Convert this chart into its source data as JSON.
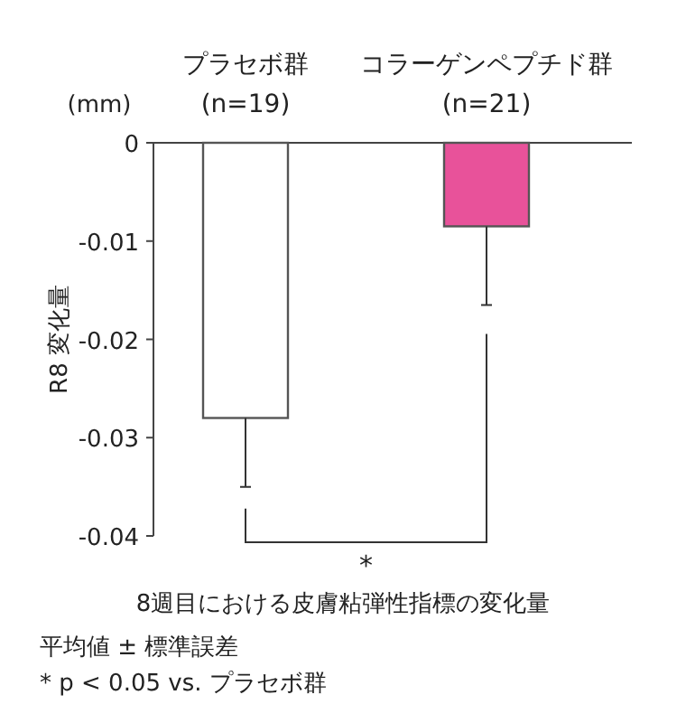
{
  "chart_data": {
    "type": "bar",
    "categories": [
      "プラセボ群\n(n=19)",
      "コラーゲンペプチド群\n(n=21)"
    ],
    "values": [
      -0.028,
      -0.0085
    ],
    "colors": [
      "#ffffff",
      "#e8529a"
    ],
    "errors": [
      [
        -0.035,
        -0.028
      ],
      [
        -0.0165,
        -0.0085
      ]
    ],
    "ylim": [
      -0.04,
      0
    ],
    "yticks": [
      0,
      -0.01,
      -0.02,
      -0.03,
      -0.04
    ],
    "ylabel": "R8 変化量",
    "xlabel": "8週目における皮膚粘弾性指標の変化量",
    "annotations": [
      "(mm)",
      "*",
      "平均値 ± 標準誤差",
      "* p < 0.05 vs. プラセボ群"
    ]
  }
}
